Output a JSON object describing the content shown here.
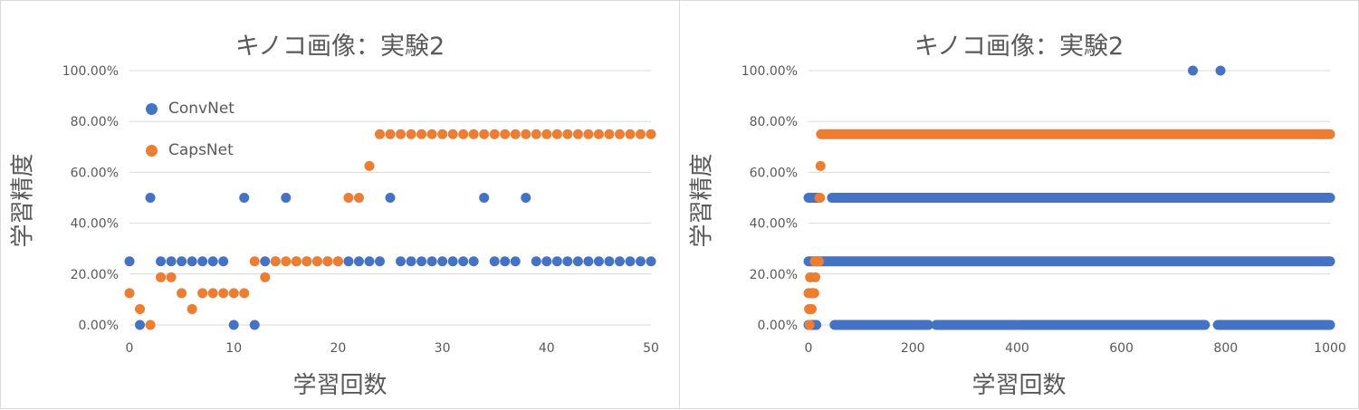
{
  "chart_data": [
    {
      "type": "scatter",
      "title": "キノコ画像：実験2",
      "xlabel": "学習回数",
      "ylabel": "学習精度",
      "xlim": [
        0,
        50
      ],
      "ylim": [
        0,
        100
      ],
      "xticks": [
        0,
        10,
        20,
        30,
        40,
        50
      ],
      "yticks": [
        0,
        20,
        40,
        60,
        80,
        100
      ],
      "ytick_labels": [
        "0.00%",
        "20.00%",
        "40.00%",
        "60.00%",
        "80.00%",
        "100.00%"
      ],
      "grid": "horizontal",
      "legend": "top-left",
      "series": [
        {
          "name": "ConvNet",
          "color": "#4472c4",
          "x": [
            0,
            1,
            2,
            3,
            4,
            5,
            6,
            7,
            8,
            9,
            10,
            11,
            12,
            13,
            14,
            15,
            16,
            17,
            18,
            19,
            20,
            21,
            22,
            23,
            24,
            25,
            26,
            27,
            28,
            29,
            30,
            31,
            32,
            33,
            34,
            35,
            36,
            37,
            38,
            39,
            40,
            41,
            42,
            43,
            44,
            45,
            46,
            47,
            48,
            49,
            50
          ],
          "y": [
            25,
            0,
            50,
            25,
            25,
            25,
            25,
            25,
            25,
            25,
            0,
            50,
            0,
            25,
            25,
            50,
            25,
            25,
            25,
            25,
            25,
            25,
            25,
            25,
            25,
            50,
            25,
            25,
            25,
            25,
            25,
            25,
            25,
            25,
            50,
            25,
            25,
            25,
            50,
            25,
            25,
            25,
            25,
            25,
            25,
            25,
            25,
            25,
            25,
            25,
            25
          ]
        },
        {
          "name": "CapsNet",
          "color": "#ed7d31",
          "x": [
            0,
            1,
            2,
            3,
            4,
            5,
            6,
            7,
            8,
            9,
            10,
            11,
            12,
            13,
            14,
            15,
            16,
            17,
            18,
            19,
            20,
            21,
            22,
            23,
            24,
            25,
            26,
            27,
            28,
            29,
            30,
            31,
            32,
            33,
            34,
            35,
            36,
            37,
            38,
            39,
            40,
            41,
            42,
            43,
            44,
            45,
            46,
            47,
            48,
            49,
            50
          ],
          "y": [
            12.5,
            6.25,
            0,
            18.75,
            18.75,
            12.5,
            6.25,
            12.5,
            12.5,
            12.5,
            12.5,
            12.5,
            25,
            18.75,
            25,
            25,
            25,
            25,
            25,
            25,
            25,
            50,
            50,
            62.5,
            75,
            75,
            75,
            75,
            75,
            75,
            75,
            75,
            75,
            75,
            75,
            75,
            75,
            75,
            75,
            75,
            75,
            75,
            75,
            75,
            75,
            75,
            75,
            75,
            75,
            75,
            75
          ]
        }
      ]
    },
    {
      "type": "scatter",
      "title": "キノコ画像：実験2",
      "xlabel": "学習回数",
      "ylabel": "学習精度",
      "xlim": [
        0,
        1000
      ],
      "ylim": [
        0,
        100
      ],
      "xticks": [
        0,
        200,
        400,
        600,
        800,
        1000
      ],
      "yticks": [
        0,
        20,
        40,
        60,
        80,
        100
      ],
      "ytick_labels": [
        "0.00%",
        "20.00%",
        "40.00%",
        "60.00%",
        "80.00%",
        "100.00%"
      ],
      "grid": "horizontal",
      "legend": "none",
      "series": [
        {
          "name": "ConvNet",
          "color": "#4472c4",
          "segments": [
            {
              "y": 25,
              "from": 0,
              "to": 1000
            },
            {
              "y": 50,
              "from": 0,
              "to": 20
            },
            {
              "y": 50,
              "from": 45,
              "to": 500
            },
            {
              "y": 50,
              "from": 500,
              "to": 1000
            },
            {
              "y": 0,
              "from": 0,
              "to": 15
            },
            {
              "y": 0,
              "from": 50,
              "to": 230
            },
            {
              "y": 0,
              "from": 245,
              "to": 400
            },
            {
              "y": 0,
              "from": 405,
              "to": 760
            },
            {
              "y": 0,
              "from": 785,
              "to": 1000
            }
          ],
          "points": [
            {
              "x": 737,
              "y": 100
            },
            {
              "x": 790,
              "y": 100
            }
          ]
        },
        {
          "name": "CapsNet",
          "color": "#ed7d31",
          "segments": [
            {
              "y": 75,
              "from": 24,
              "to": 1000
            }
          ],
          "points": [
            {
              "x": 0,
              "y": 12.5
            },
            {
              "x": 1,
              "y": 6.25
            },
            {
              "x": 2,
              "y": 0
            },
            {
              "x": 3,
              "y": 18.75
            },
            {
              "x": 4,
              "y": 18.75
            },
            {
              "x": 5,
              "y": 12.5
            },
            {
              "x": 6,
              "y": 6.25
            },
            {
              "x": 7,
              "y": 12.5
            },
            {
              "x": 8,
              "y": 12.5
            },
            {
              "x": 9,
              "y": 12.5
            },
            {
              "x": 10,
              "y": 12.5
            },
            {
              "x": 11,
              "y": 12.5
            },
            {
              "x": 12,
              "y": 25
            },
            {
              "x": 13,
              "y": 18.75
            },
            {
              "x": 14,
              "y": 25
            },
            {
              "x": 16,
              "y": 25
            },
            {
              "x": 18,
              "y": 25
            },
            {
              "x": 20,
              "y": 25
            },
            {
              "x": 21,
              "y": 50
            },
            {
              "x": 22,
              "y": 50
            },
            {
              "x": 23,
              "y": 62.5
            }
          ]
        }
      ]
    }
  ]
}
